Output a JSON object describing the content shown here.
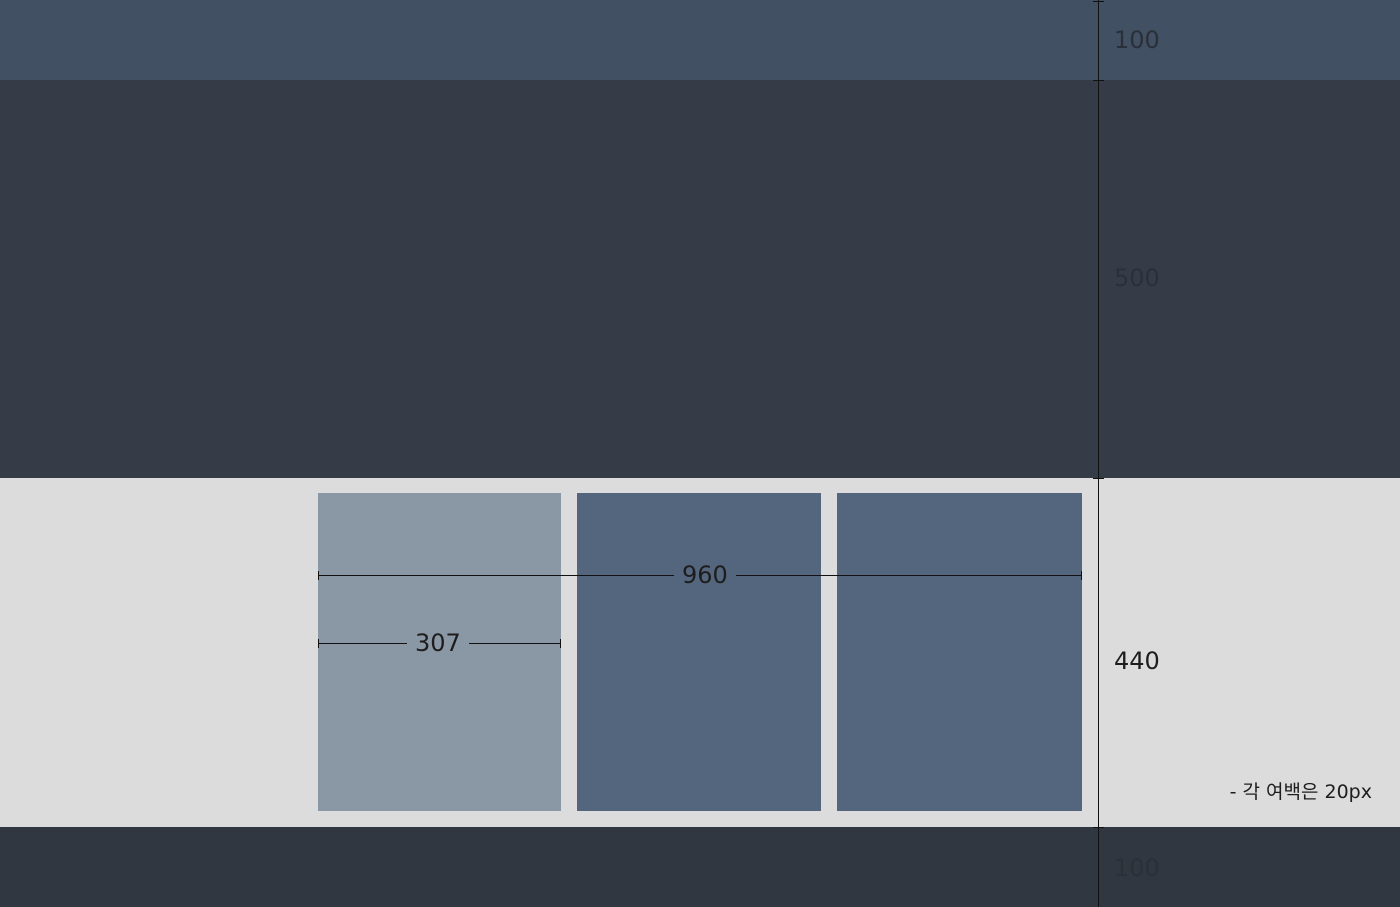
{
  "colors": {
    "header": "#415063",
    "hero": "#363c47",
    "content": "#dcdcdc",
    "footer": "#313740",
    "card_light": "#8a97a4",
    "card_dark": "#53667e"
  },
  "section_heights": {
    "header": "100",
    "hero": "500",
    "content": "440",
    "footer": "100"
  },
  "widths": {
    "container": "960",
    "column": "307"
  },
  "note": "- 각 여백은 20px"
}
